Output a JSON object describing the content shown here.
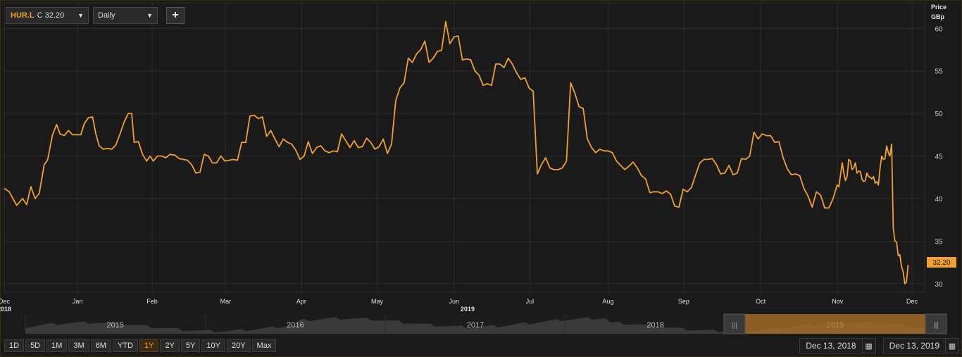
{
  "toolbar": {
    "ticker_symbol": "HUR.L",
    "ticker_quote": "C 32.20",
    "interval": "Daily",
    "add_label": "+"
  },
  "price_axis": {
    "title_line1": "Price",
    "title_line2": "GBp",
    "current_tag": "32.20"
  },
  "navigator_years": [
    "2015",
    "2016",
    "2017",
    "2018",
    "2019"
  ],
  "range_buttons": [
    "1D",
    "5D",
    "1M",
    "3M",
    "6M",
    "YTD",
    "1Y",
    "2Y",
    "5Y",
    "10Y",
    "20Y",
    "Max"
  ],
  "active_range": "1Y",
  "date_range": {
    "start": "Dec 13, 2018",
    "end": "Dec 13, 2019"
  },
  "colors": {
    "line": "#f0a030",
    "background": "#1a1a1a",
    "grid": "#2e2e2e",
    "accent": "#f0a030"
  },
  "chart_data": {
    "type": "line",
    "title": "",
    "xlabel": "",
    "ylabel": "Price GBp",
    "ylim": [
      29,
      63
    ],
    "yticks": [
      30,
      35,
      40,
      45,
      50,
      55,
      60
    ],
    "xticks": [
      {
        "label": "Dec",
        "sub": "2018",
        "t": 0
      },
      {
        "label": "Jan",
        "t": 0.0797
      },
      {
        "label": "Feb",
        "t": 0.1607
      },
      {
        "label": "Mar",
        "t": 0.2405
      },
      {
        "label": "Apr",
        "t": 0.3228
      },
      {
        "label": "May",
        "t": 0.4051
      },
      {
        "label": "Jun",
        "t": 0.4887
      },
      {
        "label": "2019",
        "t": 0.5034,
        "sub_only": true
      },
      {
        "label": "Jul",
        "t": 0.5711
      },
      {
        "label": "Aug",
        "t": 0.656
      },
      {
        "label": "Sep",
        "t": 0.7382
      },
      {
        "label": "Oct",
        "t": 0.8218
      },
      {
        "label": "Nov",
        "t": 0.9053
      },
      {
        "label": "Dec",
        "t": 0.9862
      }
    ],
    "series": [
      {
        "values": [
          [
            0.0,
            41.2
          ],
          [
            0.006,
            40.8
          ],
          [
            0.015,
            39.2
          ],
          [
            0.022,
            40.0
          ],
          [
            0.027,
            39.3
          ],
          [
            0.032,
            41.4
          ],
          [
            0.037,
            40.0
          ],
          [
            0.042,
            40.6
          ],
          [
            0.048,
            44.0
          ],
          [
            0.052,
            44.5
          ],
          [
            0.058,
            47.5
          ],
          [
            0.063,
            48.7
          ],
          [
            0.067,
            47.6
          ],
          [
            0.072,
            47.4
          ],
          [
            0.077,
            48.0
          ],
          [
            0.082,
            47.5
          ],
          [
            0.087,
            47.5
          ],
          [
            0.092,
            47.5
          ],
          [
            0.096,
            48.8
          ],
          [
            0.101,
            49.5
          ],
          [
            0.106,
            49.6
          ],
          [
            0.11,
            47.6
          ],
          [
            0.114,
            46.2
          ],
          [
            0.119,
            45.8
          ],
          [
            0.124,
            45.9
          ],
          [
            0.129,
            45.8
          ],
          [
            0.134,
            46.3
          ],
          [
            0.139,
            47.6
          ],
          [
            0.144,
            49.0
          ],
          [
            0.149,
            50.0
          ],
          [
            0.153,
            50.0
          ],
          [
            0.156,
            46.6
          ],
          [
            0.161,
            46.7
          ],
          [
            0.166,
            45.2
          ],
          [
            0.171,
            44.4
          ],
          [
            0.175,
            45.0
          ],
          [
            0.179,
            44.4
          ],
          [
            0.184,
            45.0
          ],
          [
            0.189,
            45.0
          ],
          [
            0.194,
            44.8
          ],
          [
            0.199,
            45.2
          ],
          [
            0.205,
            45.1
          ],
          [
            0.21,
            44.7
          ],
          [
            0.215,
            44.6
          ],
          [
            0.22,
            44.5
          ],
          [
            0.225,
            44.0
          ],
          [
            0.23,
            43.0
          ],
          [
            0.235,
            43.1
          ],
          [
            0.24,
            45.2
          ],
          [
            0.245,
            45.0
          ],
          [
            0.25,
            44.2
          ],
          [
            0.255,
            44.2
          ],
          [
            0.26,
            45.0
          ],
          [
            0.265,
            44.4
          ],
          [
            0.27,
            44.5
          ],
          [
            0.275,
            44.6
          ],
          [
            0.28,
            44.5
          ],
          [
            0.285,
            46.6
          ],
          [
            0.29,
            46.6
          ],
          [
            0.295,
            49.7
          ],
          [
            0.3,
            49.8
          ],
          [
            0.305,
            49.4
          ],
          [
            0.31,
            49.6
          ],
          [
            0.315,
            47.3
          ],
          [
            0.32,
            48.0
          ],
          [
            0.325,
            47.0
          ],
          [
            0.33,
            46.1
          ],
          [
            0.335,
            47.0
          ],
          [
            0.34,
            46.6
          ],
          [
            0.345,
            46.4
          ],
          [
            0.35,
            45.7
          ],
          [
            0.355,
            44.6
          ],
          [
            0.36,
            45.0
          ],
          [
            0.365,
            46.7
          ],
          [
            0.37,
            45.3
          ],
          [
            0.375,
            46.0
          ],
          [
            0.38,
            46.2
          ],
          [
            0.385,
            45.6
          ],
          [
            0.39,
            45.4
          ],
          [
            0.395,
            45.6
          ],
          [
            0.4,
            45.5
          ],
          [
            0.405,
            47.6
          ],
          [
            0.41,
            46.8
          ],
          [
            0.415,
            46.0
          ],
          [
            0.42,
            46.8
          ],
          [
            0.425,
            46.0
          ],
          [
            0.43,
            46.1
          ],
          [
            0.435,
            47.1
          ],
          [
            0.44,
            46.6
          ],
          [
            0.445,
            45.8
          ],
          [
            0.45,
            46.1
          ],
          [
            0.455,
            47.0
          ],
          [
            0.46,
            45.3
          ],
          [
            0.465,
            46.4
          ],
          [
            0.47,
            51.5
          ],
          [
            0.475,
            53.0
          ],
          [
            0.48,
            53.6
          ],
          [
            0.485,
            56.5
          ],
          [
            0.49,
            56.0
          ],
          [
            0.495,
            57.0
          ],
          [
            0.5,
            57.5
          ],
          [
            0.505,
            58.5
          ],
          [
            0.51,
            56.0
          ],
          [
            0.515,
            56.5
          ],
          [
            0.52,
            57.3
          ],
          [
            0.525,
            57.4
          ],
          [
            0.53,
            60.8
          ],
          [
            0.535,
            58.2
          ],
          [
            0.54,
            59.0
          ],
          [
            0.545,
            59.1
          ],
          [
            0.55,
            56.3
          ],
          [
            0.555,
            56.4
          ],
          [
            0.56,
            56.3
          ],
          [
            0.565,
            55.0
          ],
          [
            0.57,
            54.5
          ],
          [
            0.575,
            53.3
          ],
          [
            0.58,
            53.5
          ],
          [
            0.585,
            53.3
          ],
          [
            0.59,
            55.8
          ],
          [
            0.595,
            55.8
          ],
          [
            0.6,
            55.4
          ],
          [
            0.605,
            56.5
          ],
          [
            0.61,
            55.8
          ],
          [
            0.615,
            54.8
          ],
          [
            0.62,
            54.0
          ],
          [
            0.625,
            54.2
          ],
          [
            0.63,
            53.0
          ],
          [
            0.635,
            52.6
          ],
          [
            0.64,
            42.9
          ],
          [
            0.645,
            44.0
          ],
          [
            0.65,
            44.8
          ],
          [
            0.655,
            43.6
          ],
          [
            0.66,
            43.4
          ],
          [
            0.665,
            43.4
          ],
          [
            0.67,
            43.6
          ],
          [
            0.675,
            44.4
          ],
          [
            0.68,
            53.6
          ],
          [
            0.685,
            52.4
          ],
          [
            0.69,
            50.8
          ],
          [
            0.695,
            50.6
          ],
          [
            0.7,
            47.0
          ],
          [
            0.705,
            46.0
          ],
          [
            0.71,
            45.4
          ],
          [
            0.715,
            45.8
          ],
          [
            0.72,
            45.6
          ],
          [
            0.725,
            45.6
          ],
          [
            0.73,
            45.4
          ],
          [
            0.735,
            44.4
          ],
          [
            0.74,
            43.9
          ],
          [
            0.745,
            43.4
          ],
          [
            0.75,
            43.8
          ],
          [
            0.755,
            44.3
          ],
          [
            0.76,
            43.6
          ],
          [
            0.765,
            42.7
          ],
          [
            0.77,
            42.3
          ],
          [
            0.775,
            40.7
          ],
          [
            0.78,
            40.8
          ],
          [
            0.785,
            40.8
          ],
          [
            0.79,
            40.6
          ],
          [
            0.795,
            40.9
          ],
          [
            0.8,
            40.5
          ],
          [
            0.805,
            39.1
          ],
          [
            0.81,
            39.0
          ],
          [
            0.815,
            41.1
          ],
          [
            0.82,
            40.8
          ],
          [
            0.825,
            41.3
          ],
          [
            0.83,
            42.8
          ],
          [
            0.835,
            44.2
          ],
          [
            0.84,
            44.6
          ],
          [
            0.845,
            44.6
          ],
          [
            0.85,
            44.7
          ],
          [
            0.855,
            44.0
          ],
          [
            0.86,
            42.9
          ],
          [
            0.865,
            43.0
          ],
          [
            0.87,
            43.9
          ],
          [
            0.875,
            42.8
          ],
          [
            0.88,
            43.0
          ],
          [
            0.885,
            44.7
          ],
          [
            0.89,
            44.6
          ],
          [
            0.895,
            45.0
          ],
          [
            0.9,
            47.8
          ],
          [
            0.905,
            47.0
          ],
          [
            0.91,
            47.6
          ],
          [
            0.915,
            47.4
          ],
          [
            0.92,
            47.4
          ],
          [
            0.925,
            46.6
          ],
          [
            0.93,
            46.7
          ],
          [
            0.935,
            44.8
          ],
          [
            0.94,
            43.5
          ],
          [
            0.945,
            42.8
          ],
          [
            0.95,
            42.9
          ],
          [
            0.955,
            42.7
          ],
          [
            0.96,
            41.2
          ],
          [
            0.965,
            40.3
          ],
          [
            0.97,
            39.0
          ],
          [
            0.975,
            40.8
          ],
          [
            0.98,
            40.4
          ],
          [
            0.985,
            38.9
          ],
          [
            0.99,
            38.9
          ],
          [
            0.995,
            40.0
          ],
          [
            1.0,
            41.6
          ]
        ]
      }
    ],
    "tail": [
      [
        0.0,
        41.6
      ],
      [
        0.01,
        41.4
      ],
      [
        0.02,
        42.8
      ],
      [
        0.03,
        44.2
      ],
      [
        0.04,
        43.0
      ],
      [
        0.05,
        42.1
      ],
      [
        0.06,
        42.6
      ],
      [
        0.07,
        44.6
      ],
      [
        0.08,
        44.4
      ],
      [
        0.09,
        43.4
      ],
      [
        0.1,
        43.6
      ],
      [
        0.11,
        44.2
      ],
      [
        0.12,
        43.0
      ],
      [
        0.13,
        43.2
      ],
      [
        0.14,
        43.2
      ],
      [
        0.15,
        42.3
      ],
      [
        0.16,
        42.0
      ],
      [
        0.17,
        42.1
      ],
      [
        0.18,
        43.0
      ],
      [
        0.19,
        42.6
      ],
      [
        0.2,
        42.5
      ],
      [
        0.21,
        42.3
      ],
      [
        0.22,
        42.6
      ],
      [
        0.23,
        41.8
      ],
      [
        0.24,
        42.0
      ],
      [
        0.25,
        41.6
      ],
      [
        0.26,
        43.6
      ],
      [
        0.27,
        45.0
      ],
      [
        0.28,
        44.6
      ],
      [
        0.29,
        44.7
      ],
      [
        0.3,
        46.2
      ],
      [
        0.31,
        45.4
      ],
      [
        0.32,
        45.0
      ],
      [
        0.33,
        46.4
      ],
      [
        0.34,
        36.5
      ],
      [
        0.35,
        35.0
      ],
      [
        0.36,
        34.9
      ],
      [
        0.37,
        33.3
      ],
      [
        0.38,
        33.4
      ],
      [
        0.39,
        32.0
      ],
      [
        0.4,
        31.4
      ],
      [
        0.41,
        30.0
      ],
      [
        0.42,
        30.2
      ],
      [
        0.43,
        32.2
      ]
    ]
  }
}
